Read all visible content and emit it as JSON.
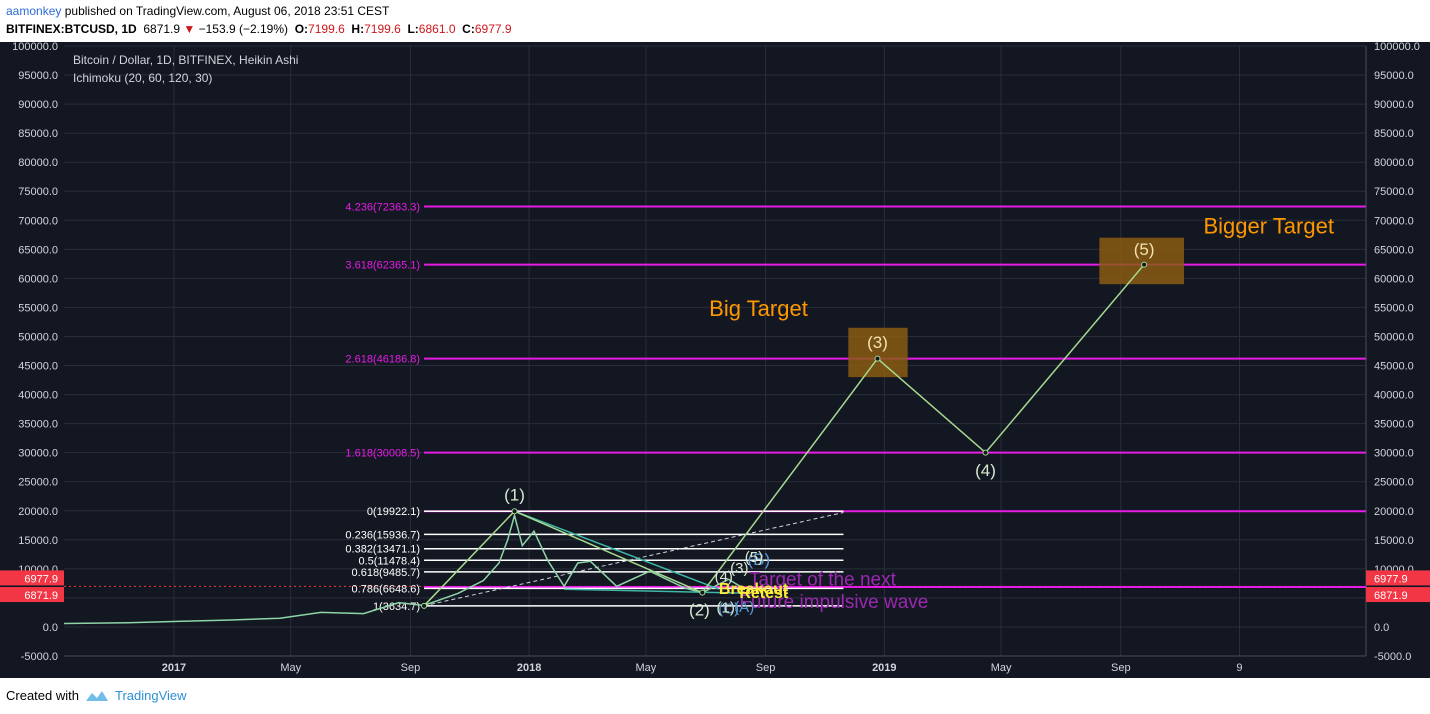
{
  "header": {
    "author": "aamonkey",
    "published": "published on TradingView.com, August 06, 2018 23:51 CEST",
    "symbol": "BITFINEX:BTCUSD, 1D",
    "last": "6871.9",
    "change": "−153.9 (−2.19%)",
    "o_label": "O:",
    "o": "7199.6",
    "h_label": "H:",
    "h": "7199.6",
    "l_label": "L:",
    "l": "6861.0",
    "c_label": "C:",
    "c": "6977.9"
  },
  "legend": {
    "title": "Bitcoin / Dollar, 1D, BITFINEX, Heikin Ashi",
    "indicator": "Ichimoku (20, 60, 120, 30)"
  },
  "footer": {
    "created": "Created with",
    "brand": "TradingView"
  },
  "colors": {
    "background": "#131722",
    "grid": "#2a2e39",
    "axis_text": "#d1d4dc",
    "fib_ext": "#e61be6",
    "fib_ret": "#ffffff",
    "wave": "#a7d98f",
    "target_box": "#8a5a12",
    "target_text": "#ff9800",
    "price_red": "#f23645",
    "purple_text": "#9c27b0"
  },
  "chart_data": {
    "type": "line",
    "title": "Bitcoin / Dollar, 1D, BITFINEX, Heikin Ashi",
    "y_range": [
      -5000,
      100000
    ],
    "y_ticks": [
      -5000,
      0,
      5000,
      10000,
      15000,
      20000,
      25000,
      30000,
      35000,
      40000,
      45000,
      50000,
      55000,
      60000,
      65000,
      70000,
      75000,
      80000,
      85000,
      90000,
      95000,
      100000
    ],
    "x_ticks": [
      "2017",
      "May",
      "Sep",
      "2018",
      "May",
      "Sep",
      "2019",
      "May",
      "Sep",
      "9"
    ],
    "x_range": [
      "2016-09-10",
      "2020-05-10"
    ],
    "price_badges": [
      "6977.9",
      "6871.9"
    ],
    "price_levels": [
      6977.9,
      6871.9
    ],
    "price_series": [
      {
        "x": "2016-09-10",
        "y": 600
      },
      {
        "x": "2016-11-15",
        "y": 720
      },
      {
        "x": "2017-01-05",
        "y": 950
      },
      {
        "x": "2017-03-01",
        "y": 1200
      },
      {
        "x": "2017-04-20",
        "y": 1500
      },
      {
        "x": "2017-06-01",
        "y": 2500
      },
      {
        "x": "2017-07-15",
        "y": 2300
      },
      {
        "x": "2017-08-20",
        "y": 4200
      },
      {
        "x": "2017-09-15",
        "y": 3700
      },
      {
        "x": "2017-10-20",
        "y": 5800
      },
      {
        "x": "2017-11-15",
        "y": 8000
      },
      {
        "x": "2017-12-01",
        "y": 11000
      },
      {
        "x": "2017-12-10",
        "y": 15000
      },
      {
        "x": "2017-12-17",
        "y": 19200
      },
      {
        "x": "2017-12-25",
        "y": 14000
      },
      {
        "x": "2018-01-06",
        "y": 16500
      },
      {
        "x": "2018-01-20",
        "y": 11500
      },
      {
        "x": "2018-02-06",
        "y": 7000
      },
      {
        "x": "2018-02-20",
        "y": 11000
      },
      {
        "x": "2018-03-05",
        "y": 11300
      },
      {
        "x": "2018-04-01",
        "y": 7000
      },
      {
        "x": "2018-05-05",
        "y": 9600
      },
      {
        "x": "2018-06-10",
        "y": 6700
      },
      {
        "x": "2018-06-28",
        "y": 5900
      },
      {
        "x": "2018-07-25",
        "y": 8200
      },
      {
        "x": "2018-08-06",
        "y": 6977.9
      }
    ],
    "fib_extensions": [
      {
        "label": "4.236(72363.3)",
        "value": 72363.3
      },
      {
        "label": "3.618(62365.1)",
        "value": 62365.1
      },
      {
        "label": "2.618(46186.8)",
        "value": 46186.8
      },
      {
        "label": "1.618(30008.5)",
        "value": 30008.5
      },
      {
        "label": "",
        "value": 19922.1
      },
      {
        "label": "",
        "value": 6871.9
      }
    ],
    "fib_retracements": [
      {
        "label": "0(19922.1)",
        "value": 19922.1
      },
      {
        "label": "0.236(15936.7)",
        "value": 15936.7
      },
      {
        "label": "0.382(13471.1)",
        "value": 13471.1
      },
      {
        "label": "0.5(11478.4)",
        "value": 11478.4
      },
      {
        "label": "0.618(9485.7)",
        "value": 9485.7
      },
      {
        "label": "0.786(6648.6)",
        "value": 6648.6
      },
      {
        "label": "1(3634.7)",
        "value": 3634.7
      }
    ],
    "fib_retracement_range": [
      "2017-09-15",
      "2018-11-20"
    ],
    "wave_path": [
      {
        "x": "2017-09-15",
        "y": 3634.7
      },
      {
        "x": "2017-12-17",
        "y": 19922.1
      },
      {
        "x": "2018-06-28",
        "y": 5900
      },
      {
        "x": "2018-12-25",
        "y": 46186.8
      },
      {
        "x": "2019-04-15",
        "y": 30008.5
      },
      {
        "x": "2019-09-25",
        "y": 62365.1
      }
    ],
    "wave_labels": [
      {
        "text": "(1)",
        "x": "2017-12-17",
        "y": 21800
      },
      {
        "text": "(2)",
        "x": "2018-06-25",
        "y": 2000
      },
      {
        "text": "(3)",
        "x": "2018-12-25",
        "y": 48000
      },
      {
        "text": "(4)",
        "x": "2019-04-15",
        "y": 26000
      },
      {
        "text": "(5)",
        "x": "2019-09-25",
        "y": 64000
      }
    ],
    "target_boxes": [
      {
        "x0": "2018-11-25",
        "x1": "2019-01-25",
        "y0": 43000,
        "y1": 51500
      },
      {
        "x0": "2019-08-10",
        "x1": "2019-11-05",
        "y0": 59000,
        "y1": 67000
      }
    ],
    "annotations": [
      {
        "text": "Big Target",
        "x": "2018-07-05",
        "y": 53500
      },
      {
        "text": "Bigger Target",
        "x": "2019-11-25",
        "y": 67700
      },
      {
        "text": "Target of the next",
        "x": "2018-08-15",
        "y": 7100
      },
      {
        "text": "Future impulsive wave",
        "x": "2018-08-05",
        "y": 3300
      },
      {
        "text": "Breakout",
        "x": "2018-07-15",
        "y": 5700
      },
      {
        "text": "Retest",
        "x": "2018-08-05",
        "y": 5000
      },
      {
        "text": "(B)",
        "x": "2018-08-25",
        "y": 10700
      },
      {
        "text": "(C)",
        "x": "2018-07-25",
        "y": 2300
      },
      {
        "text": "(A)",
        "x": "2018-08-10",
        "y": 2600
      },
      {
        "text": "(4)",
        "x": "2018-07-20",
        "y": 7800
      },
      {
        "text": "(3)",
        "x": "2018-08-05",
        "y": 9300
      },
      {
        "text": "(5)",
        "x": "2018-08-20",
        "y": 11200
      },
      {
        "text": "(1)",
        "x": "2018-07-22",
        "y": 2500
      }
    ]
  }
}
